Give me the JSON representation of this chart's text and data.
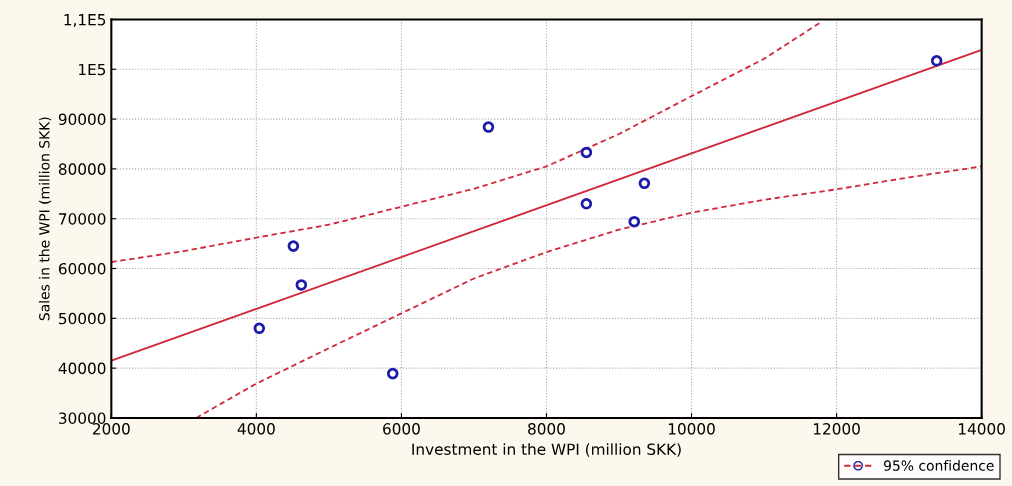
{
  "chart_data": {
    "type": "scatter",
    "xlabel": "Investment in the WPI (million SKK)",
    "ylabel": "Sales in the WPI (million SKK)",
    "xlim": [
      2000,
      14000
    ],
    "xticks": [
      2000,
      4000,
      6000,
      8000,
      10000,
      12000,
      14000
    ],
    "ylim": [
      30000,
      110000
    ],
    "yticks": [
      30000,
      40000,
      50000,
      60000,
      70000,
      80000,
      90000,
      {
        "value": 100000,
        "label": "1E5"
      },
      {
        "value": 110000,
        "label": "1,1E5"
      }
    ],
    "grid": true,
    "legend": "bottom right",
    "series": [
      {
        "color": "#1c1caa",
        "marker": "circle",
        "x": [
          4040,
          4510,
          4620,
          5880,
          7200,
          8550,
          8550,
          9350,
          9210,
          13380
        ],
        "values": [
          48000,
          64500,
          56700,
          38900,
          88400,
          83300,
          73000,
          77100,
          69400,
          101700
        ]
      },
      {
        "type": "line",
        "color": "#d0283c",
        "line_style": "solid",
        "marker": "none",
        "x": [
          2000,
          14000
        ],
        "values": [
          41500,
          103900
        ]
      },
      {
        "type": "line",
        "name": "95% confidence",
        "color": "#d0283c",
        "line_style": "dashed",
        "marker": "none",
        "x": [
          2000,
          3000,
          4000,
          5000,
          6000,
          7000,
          8000,
          9000,
          10000,
          11000,
          11800
        ],
        "values": [
          61300,
          63500,
          66200,
          68800,
          72400,
          76000,
          80500,
          87000,
          94600,
          102100,
          109600
        ]
      },
      {
        "type": "line",
        "color": "#d0283c",
        "line_style": "dashed",
        "marker": "none",
        "x": [
          3170,
          4000,
          5000,
          6000,
          7000,
          8000,
          9000,
          10000,
          11000,
          12000,
          13000,
          14000
        ],
        "values": [
          30000,
          36900,
          44000,
          51000,
          58000,
          63300,
          67800,
          71200,
          73800,
          75900,
          78300,
          80500
        ]
      }
    ]
  }
}
